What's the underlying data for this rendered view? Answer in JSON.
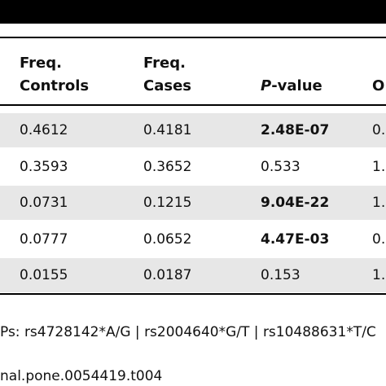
{
  "table": {
    "header": [
      [
        "Freq.",
        "Controls"
      ],
      [
        "Freq.",
        "Cases"
      ],
      [
        "P",
        "-value"
      ],
      [
        "O"
      ]
    ],
    "rows": [
      [
        "0.4612",
        "0.4181",
        "2.48E-07",
        "0."
      ],
      [
        "0.3593",
        "0.3652",
        "0.533",
        "1."
      ],
      [
        "0.0731",
        "0.1215",
        "9.04E-22",
        "1."
      ],
      [
        "0.0777",
        "0.0652",
        "4.47E-03",
        "0."
      ],
      [
        "0.0155",
        "0.0187",
        "0.153",
        "1."
      ]
    ]
  },
  "footnote": "Ps: rs4728142*A/G | rs2004640*G/T | rs10488631*T/C",
  "doi": "nal.pone.0054419.t004"
}
